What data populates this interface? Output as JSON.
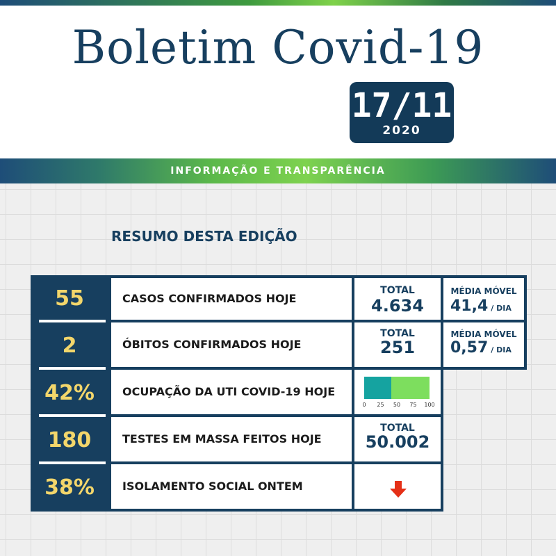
{
  "header": {
    "title": "Boletim Covid-19",
    "date_day": "17/11",
    "date_year": "2020",
    "banner": "INFORMAÇÃO E TRANSPARÊNCIA"
  },
  "section": {
    "title": "RESUMO DESTA EDIÇÃO"
  },
  "rows": [
    {
      "number": "55",
      "label": "CASOS CONFIRMADOS HOJE",
      "total_label": "TOTAL",
      "total_value": "4.634",
      "avg_label": "MÉDIA MÓVEL",
      "avg_value": "41,4",
      "avg_unit": "/ DIA"
    },
    {
      "number": "2",
      "label": "ÓBITOS CONFIRMADOS HOJE",
      "total_label": "TOTAL",
      "total_value": "251",
      "avg_label": "MÉDIA MÓVEL",
      "avg_value": "0,57",
      "avg_unit": "/ DIA"
    },
    {
      "number": "42%",
      "label": "OCUPAÇÃO DA UTI COVID-19 HOJE",
      "gauge_value": 42,
      "gauge_ticks": [
        "0",
        "25",
        "50",
        "75",
        "100"
      ]
    },
    {
      "number": "180",
      "label": "TESTES EM MASSA FEITOS HOJE",
      "total_label": "TOTAL",
      "total_value": "50.002"
    },
    {
      "number": "38%",
      "label": "ISOLAMENTO SOCIAL ONTEM",
      "trend_icon": "arrow-down-icon"
    }
  ],
  "colors": {
    "navy": "#173f5f",
    "number_yellow": "#f3d66b",
    "gauge_teal": "#15a3a0",
    "gauge_green": "#7dde5e",
    "arrow_red": "#e53017"
  }
}
